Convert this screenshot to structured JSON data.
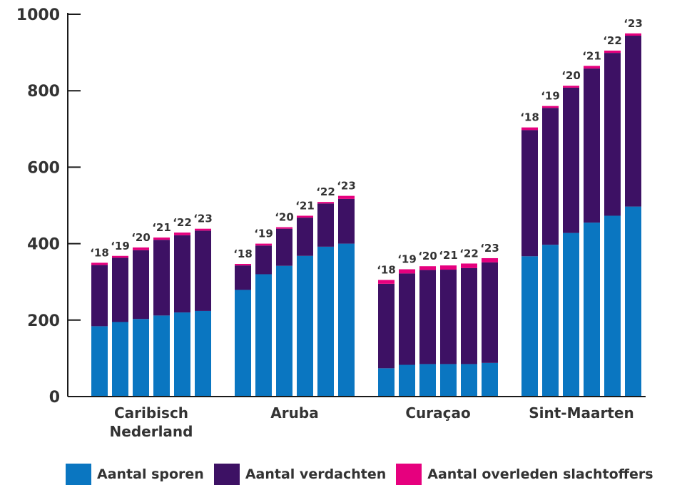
{
  "chart_data": {
    "type": "bar",
    "stacked": true,
    "ylim": [
      0,
      1000
    ],
    "yticks": [
      0,
      200,
      400,
      600,
      800,
      1000
    ],
    "groups": [
      {
        "name": "Caribisch Nederland",
        "label_lines": [
          "Caribisch",
          "Nederland"
        ]
      },
      {
        "name": "Aruba",
        "label_lines": [
          "Aruba"
        ]
      },
      {
        "name": "Curaçao",
        "label_lines": [
          "Curaçao"
        ]
      },
      {
        "name": "Sint-Maarten",
        "label_lines": [
          "Sint-Maarten"
        ]
      }
    ],
    "years": [
      "‘18",
      "‘19",
      "‘20",
      "‘21",
      "‘22",
      "‘23"
    ],
    "series": [
      {
        "name": "Aantal sporen",
        "color": "#0a76c1",
        "values": [
          [
            184,
            195,
            203,
            212,
            220,
            224
          ],
          [
            279,
            320,
            342,
            368,
            392,
            400
          ],
          [
            74,
            83,
            85,
            85,
            85,
            88
          ],
          [
            367,
            397,
            428,
            455,
            473,
            497
          ]
        ]
      },
      {
        "name": "Aantal verdachten",
        "color": "#3d1164",
        "values": [
          [
            160,
            168,
            180,
            198,
            202,
            210
          ],
          [
            64,
            75,
            97,
            100,
            113,
            117
          ],
          [
            221,
            239,
            246,
            247,
            251,
            263
          ],
          [
            330,
            358,
            380,
            403,
            426,
            447
          ]
        ]
      },
      {
        "name": "Aantal overleden slachtoffers",
        "color": "#e6007e",
        "values": [
          [
            6,
            5,
            7,
            6,
            7,
            5
          ],
          [
            4,
            5,
            4,
            5,
            4,
            8
          ],
          [
            10,
            11,
            10,
            11,
            12,
            11
          ],
          [
            7,
            5,
            5,
            7,
            6,
            6
          ]
        ]
      }
    ]
  }
}
